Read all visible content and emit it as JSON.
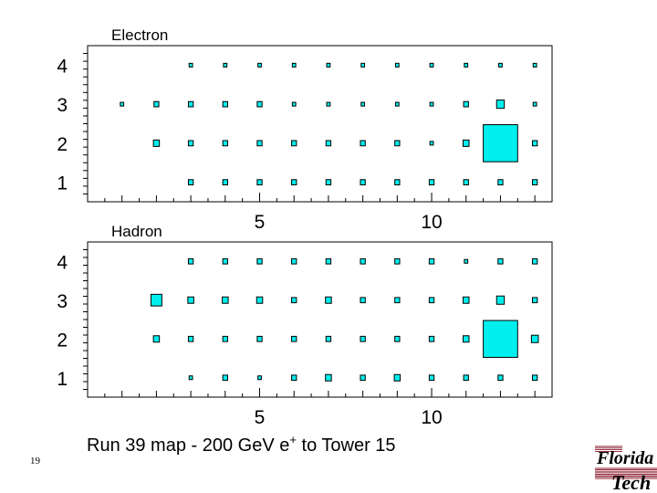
{
  "chart_data": [
    {
      "type": "scatter",
      "title": "Electron",
      "xlim": [
        0,
        13.5
      ],
      "ylim": [
        0.5,
        4.5
      ],
      "xticks": [
        5,
        10
      ],
      "yticks": [
        1,
        2,
        3,
        4
      ],
      "show_x_tick_labels": true,
      "marker_color": "#00eeee",
      "points": [
        {
          "x": 3,
          "y": 4,
          "v": 1
        },
        {
          "x": 4,
          "y": 4,
          "v": 1
        },
        {
          "x": 5,
          "y": 4,
          "v": 1
        },
        {
          "x": 6,
          "y": 4,
          "v": 1
        },
        {
          "x": 7,
          "y": 4,
          "v": 1
        },
        {
          "x": 8,
          "y": 4,
          "v": 1
        },
        {
          "x": 9,
          "y": 4,
          "v": 1
        },
        {
          "x": 10,
          "y": 4,
          "v": 1
        },
        {
          "x": 11,
          "y": 4,
          "v": 1
        },
        {
          "x": 12,
          "y": 4,
          "v": 1
        },
        {
          "x": 13,
          "y": 4,
          "v": 1
        },
        {
          "x": 1,
          "y": 3,
          "v": 1
        },
        {
          "x": 2,
          "y": 3,
          "v": 2
        },
        {
          "x": 3,
          "y": 3,
          "v": 2
        },
        {
          "x": 4,
          "y": 3,
          "v": 2
        },
        {
          "x": 5,
          "y": 3,
          "v": 2
        },
        {
          "x": 6,
          "y": 3,
          "v": 1
        },
        {
          "x": 7,
          "y": 3,
          "v": 1
        },
        {
          "x": 8,
          "y": 3,
          "v": 1
        },
        {
          "x": 9,
          "y": 3,
          "v": 1
        },
        {
          "x": 10,
          "y": 3,
          "v": 1
        },
        {
          "x": 11,
          "y": 3,
          "v": 2
        },
        {
          "x": 12,
          "y": 3,
          "v": 5
        },
        {
          "x": 13,
          "y": 3,
          "v": 1
        },
        {
          "x": 2,
          "y": 2,
          "v": 3
        },
        {
          "x": 3,
          "y": 2,
          "v": 2
        },
        {
          "x": 4,
          "y": 2,
          "v": 2
        },
        {
          "x": 5,
          "y": 2,
          "v": 2
        },
        {
          "x": 6,
          "y": 2,
          "v": 2
        },
        {
          "x": 7,
          "y": 2,
          "v": 2
        },
        {
          "x": 8,
          "y": 2,
          "v": 2
        },
        {
          "x": 9,
          "y": 2,
          "v": 2
        },
        {
          "x": 10,
          "y": 2,
          "v": 1
        },
        {
          "x": 11,
          "y": 2,
          "v": 3
        },
        {
          "x": 12,
          "y": 2,
          "v": 100
        },
        {
          "x": 13,
          "y": 2,
          "v": 2
        },
        {
          "x": 3,
          "y": 1,
          "v": 2
        },
        {
          "x": 4,
          "y": 1,
          "v": 2
        },
        {
          "x": 5,
          "y": 1,
          "v": 2
        },
        {
          "x": 6,
          "y": 1,
          "v": 2
        },
        {
          "x": 7,
          "y": 1,
          "v": 2
        },
        {
          "x": 8,
          "y": 1,
          "v": 2
        },
        {
          "x": 9,
          "y": 1,
          "v": 2
        },
        {
          "x": 10,
          "y": 1,
          "v": 2
        },
        {
          "x": 11,
          "y": 1,
          "v": 2
        },
        {
          "x": 12,
          "y": 1,
          "v": 2
        },
        {
          "x": 13,
          "y": 1,
          "v": 2
        }
      ]
    },
    {
      "type": "scatter",
      "title": "Hadron",
      "xlim": [
        0,
        13.5
      ],
      "ylim": [
        0.5,
        4.5
      ],
      "xticks": [
        5,
        10
      ],
      "yticks": [
        1,
        2,
        3,
        4
      ],
      "show_x_tick_labels": true,
      "marker_color": "#00eeee",
      "points": [
        {
          "x": 3,
          "y": 4,
          "v": 2
        },
        {
          "x": 4,
          "y": 4,
          "v": 2
        },
        {
          "x": 5,
          "y": 4,
          "v": 2
        },
        {
          "x": 6,
          "y": 4,
          "v": 2
        },
        {
          "x": 7,
          "y": 4,
          "v": 2
        },
        {
          "x": 8,
          "y": 4,
          "v": 2
        },
        {
          "x": 9,
          "y": 4,
          "v": 2
        },
        {
          "x": 10,
          "y": 4,
          "v": 2
        },
        {
          "x": 11,
          "y": 4,
          "v": 1
        },
        {
          "x": 12,
          "y": 4,
          "v": 2
        },
        {
          "x": 13,
          "y": 4,
          "v": 2
        },
        {
          "x": 2,
          "y": 3,
          "v": 10
        },
        {
          "x": 3,
          "y": 3,
          "v": 3
        },
        {
          "x": 4,
          "y": 3,
          "v": 3
        },
        {
          "x": 5,
          "y": 3,
          "v": 3
        },
        {
          "x": 6,
          "y": 3,
          "v": 2
        },
        {
          "x": 7,
          "y": 3,
          "v": 3
        },
        {
          "x": 8,
          "y": 3,
          "v": 2
        },
        {
          "x": 9,
          "y": 3,
          "v": 2
        },
        {
          "x": 10,
          "y": 3,
          "v": 2
        },
        {
          "x": 11,
          "y": 3,
          "v": 3
        },
        {
          "x": 12,
          "y": 3,
          "v": 5
        },
        {
          "x": 13,
          "y": 3,
          "v": 2
        },
        {
          "x": 2,
          "y": 2,
          "v": 3
        },
        {
          "x": 3,
          "y": 2,
          "v": 2
        },
        {
          "x": 4,
          "y": 2,
          "v": 2
        },
        {
          "x": 5,
          "y": 2,
          "v": 2
        },
        {
          "x": 6,
          "y": 2,
          "v": 2
        },
        {
          "x": 7,
          "y": 2,
          "v": 2
        },
        {
          "x": 8,
          "y": 2,
          "v": 2
        },
        {
          "x": 9,
          "y": 2,
          "v": 2
        },
        {
          "x": 10,
          "y": 2,
          "v": 2
        },
        {
          "x": 11,
          "y": 2,
          "v": 3
        },
        {
          "x": 12,
          "y": 2,
          "v": 100
        },
        {
          "x": 13,
          "y": 2,
          "v": 4
        },
        {
          "x": 3,
          "y": 1,
          "v": 1
        },
        {
          "x": 4,
          "y": 1,
          "v": 2
        },
        {
          "x": 5,
          "y": 1,
          "v": 1
        },
        {
          "x": 6,
          "y": 1,
          "v": 2
        },
        {
          "x": 7,
          "y": 1,
          "v": 3
        },
        {
          "x": 8,
          "y": 1,
          "v": 2
        },
        {
          "x": 9,
          "y": 1,
          "v": 3
        },
        {
          "x": 10,
          "y": 1,
          "v": 2
        },
        {
          "x": 11,
          "y": 1,
          "v": 2
        },
        {
          "x": 12,
          "y": 1,
          "v": 2
        },
        {
          "x": 13,
          "y": 1,
          "v": 2
        }
      ]
    }
  ],
  "caption": {
    "prefix": "Run 39 map -  200 GeV e",
    "superscript": "+",
    "suffix": "  to  Tower 15"
  },
  "page_number": "19",
  "logo": {
    "line1": "Florida",
    "line2": "Tech",
    "stripe_color": "#8b1a2e"
  }
}
